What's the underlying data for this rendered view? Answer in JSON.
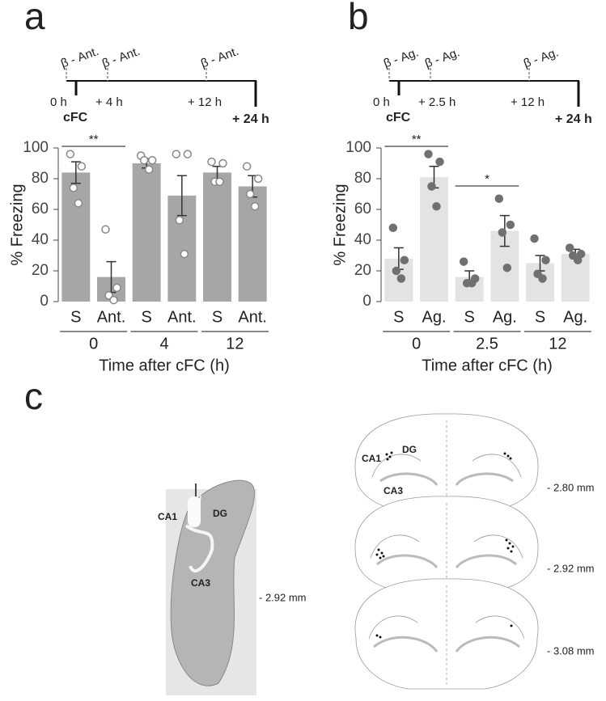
{
  "panels": [
    "a",
    "b",
    "c"
  ],
  "timelines": [
    {
      "drugs": [
        "β - Ant.",
        "β - Ant.",
        "β - Ant."
      ],
      "times": [
        "0 h",
        "+ 4 h",
        "+ 12 h"
      ],
      "start": "cFC",
      "end": "+ 24 h"
    },
    {
      "drugs": [
        "β - Ag.",
        "β - Ag.",
        "β - Ag."
      ],
      "times": [
        "0 h",
        "+ 2.5 h",
        "+ 12 h"
      ],
      "start": "cFC",
      "end": "+ 24 h"
    }
  ],
  "chart_data": [
    {
      "type": "bar",
      "ylabel": "% Freezing",
      "xlabel": "Time after cFC (h)",
      "categories": [
        "S",
        "Ant.",
        "S",
        "Ant.",
        "S",
        "Ant."
      ],
      "groups": [
        "0",
        "4",
        "12"
      ],
      "values": [
        84,
        16,
        90,
        69,
        84,
        75
      ],
      "errors": [
        7,
        10,
        3,
        13,
        4,
        7
      ],
      "points": [
        [
          96,
          88,
          74,
          64
        ],
        [
          47,
          9,
          4,
          1
        ],
        [
          95,
          92,
          92,
          86
        ],
        [
          96,
          96,
          53,
          31
        ],
        [
          91,
          90,
          78,
          78
        ],
        [
          88,
          80,
          70,
          62
        ]
      ],
      "annotations": [
        "**"
      ],
      "color": "#a6a6a6",
      "point_style": "open",
      "ylim": [
        0,
        100
      ],
      "yticks": [
        0,
        20,
        40,
        60,
        80,
        100
      ]
    },
    {
      "type": "bar",
      "ylabel": "% Freezing",
      "xlabel": "Time after cFC (h)",
      "categories": [
        "S",
        "Ag.",
        "S",
        "Ag.",
        "S",
        "Ag."
      ],
      "groups": [
        "0",
        "2.5",
        "12"
      ],
      "values": [
        28,
        81,
        16,
        46,
        25,
        31
      ],
      "errors": [
        7,
        7,
        4,
        10,
        5,
        3
      ],
      "points": [
        [
          48,
          27,
          20,
          15
        ],
        [
          96,
          91,
          75,
          62
        ],
        [
          26,
          15,
          12,
          12
        ],
        [
          67,
          50,
          45,
          22
        ],
        [
          41,
          27,
          18,
          15
        ],
        [
          35,
          31,
          30,
          27
        ]
      ],
      "annotations": [
        "**",
        "*"
      ],
      "color": "#e3e3e3",
      "point_style": "filled",
      "ylim": [
        0,
        100
      ],
      "yticks": [
        0,
        20,
        40,
        60,
        80,
        100
      ]
    }
  ],
  "panel_c": {
    "histology": {
      "labels": [
        "CA1",
        "DG",
        "CA3"
      ],
      "level": "- 2.92 mm"
    },
    "atlas": {
      "labels": [
        "CA1",
        "DG",
        "CA3"
      ],
      "levels": [
        "- 2.80 mm",
        "- 2.92 mm",
        "- 3.08 mm"
      ]
    }
  }
}
